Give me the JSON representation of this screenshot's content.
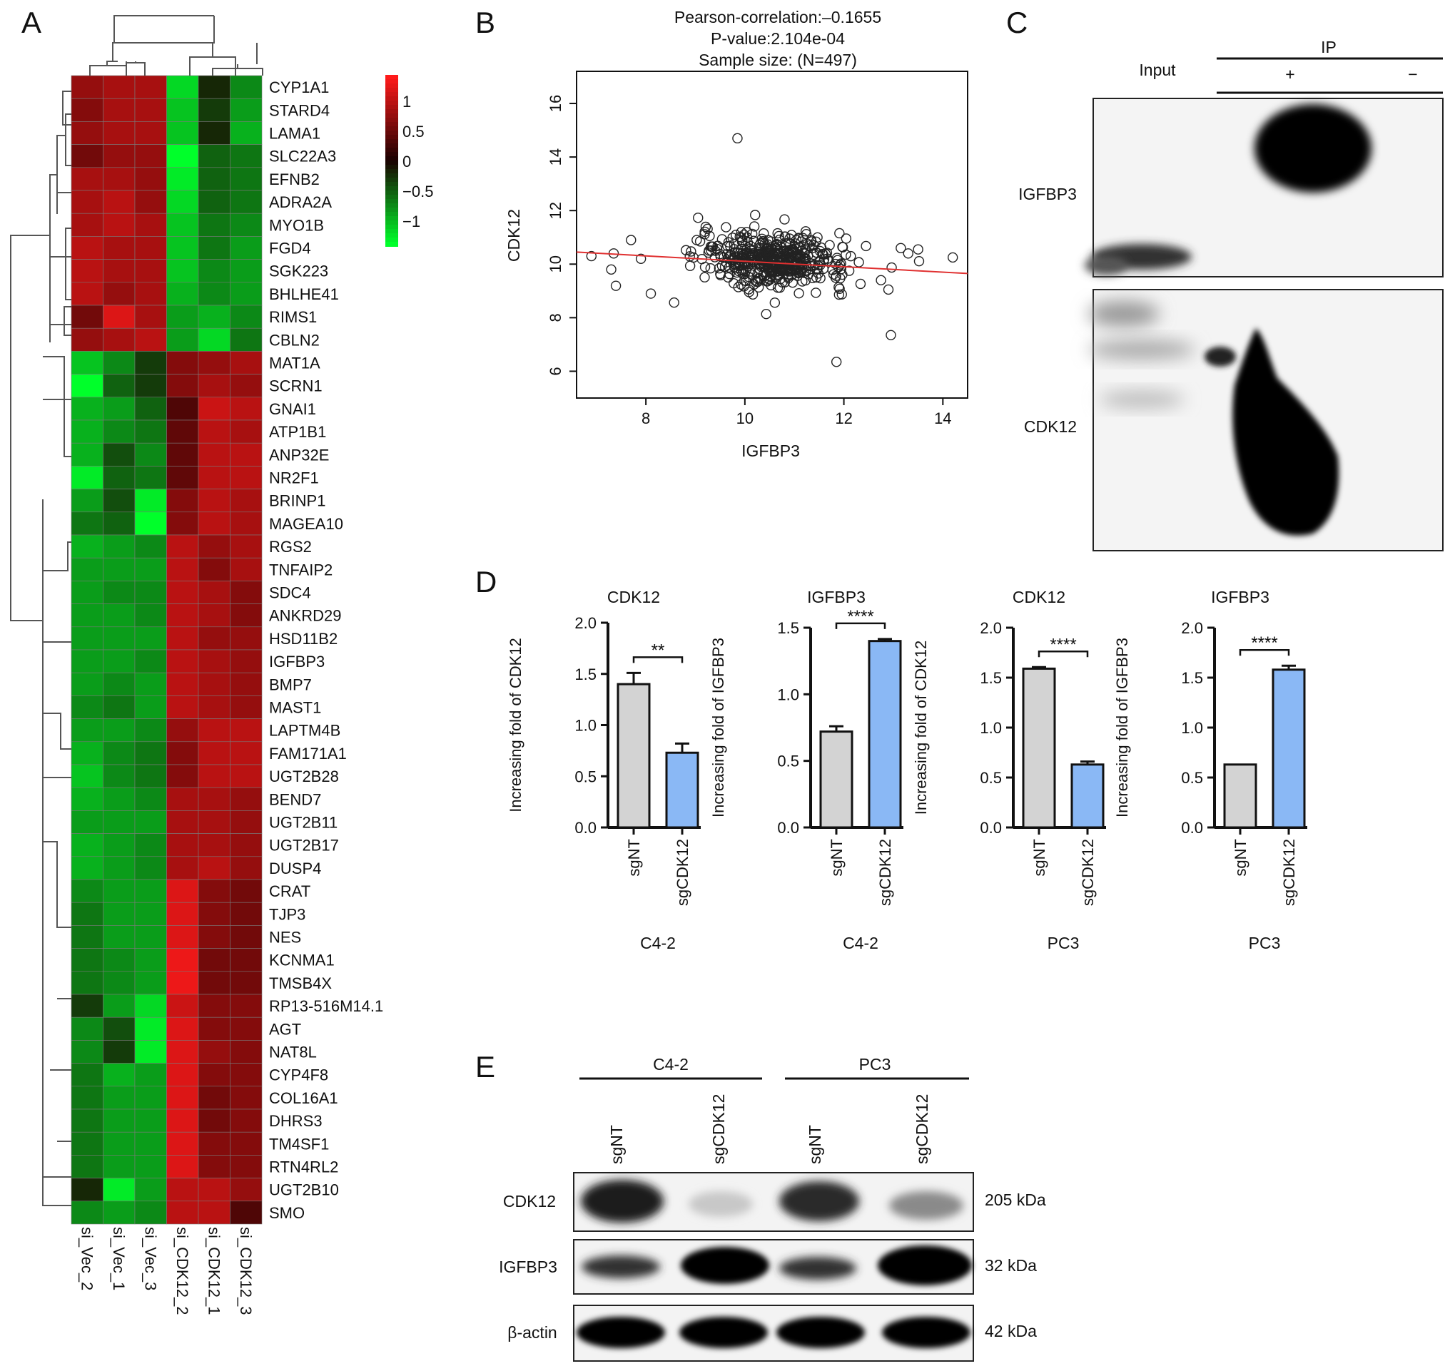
{
  "panel_labels": [
    "A",
    "B",
    "C",
    "D",
    "E"
  ],
  "colors": {
    "high": "#ff1a1a",
    "mid": "#1a0000",
    "low": "#00ff2a",
    "line": "#e03030",
    "bar_nt": "#d3d3d3",
    "bar_sg": "#8ab8f5"
  },
  "chart_data": [
    {
      "panel": "A",
      "type": "heatmap",
      "columns": [
        "si_Vec_2",
        "si_Vec_1",
        "si_Vec_3",
        "si_CDK12_2",
        "si_CDK12_1",
        "si_CDK12_3"
      ],
      "rows": [
        "CYP1A1",
        "STARD4",
        "LAMA1",
        "SLC22A3",
        "EFNB2",
        "ADRA2A",
        "MYO1B",
        "FGD4",
        "SGK223",
        "BHLHE41",
        "RIMS1",
        "CBLN2",
        "MAT1A",
        "SCRN1",
        "GNAI1",
        "ATP1B1",
        "ANP32E",
        "NR2F1",
        "BRINP1",
        "MAGEA10",
        "RGS2",
        "TNFAIP2",
        "SDC4",
        "ANKRD29",
        "HSD11B2",
        "IGFBP3",
        "BMP7",
        "MAST1",
        "LAPTM4B",
        "FAM171A1",
        "UGT2B28",
        "BEND7",
        "UGT2B11",
        "UGT2B17",
        "DUSP4",
        "CRAT",
        "TJP3",
        "NES",
        "KCNMA1",
        "TMSB4X",
        "RP13-516M14.1",
        "AGT",
        "NAT8L",
        "CYP4F8",
        "COL16A1",
        "DHRS3",
        "TM4SF1",
        "RTN4RL2",
        "UGT2B10",
        "SMO"
      ],
      "values": [
        [
          0.7,
          0.8,
          0.8,
          -1.1,
          -0.2,
          -0.7
        ],
        [
          0.6,
          0.8,
          0.8,
          -1.0,
          -0.3,
          -0.8
        ],
        [
          0.7,
          0.8,
          0.8,
          -1.0,
          -0.2,
          -0.9
        ],
        [
          0.5,
          0.7,
          0.7,
          -1.3,
          -0.5,
          -0.6
        ],
        [
          0.8,
          0.8,
          0.7,
          -1.2,
          -0.5,
          -0.6
        ],
        [
          0.8,
          0.9,
          0.7,
          -1.1,
          -0.5,
          -0.6
        ],
        [
          0.8,
          0.9,
          0.8,
          -1.0,
          -0.6,
          -0.7
        ],
        [
          0.9,
          0.8,
          0.8,
          -1.0,
          -0.6,
          -0.8
        ],
        [
          0.9,
          0.8,
          0.8,
          -1.0,
          -0.7,
          -0.8
        ],
        [
          0.9,
          0.7,
          0.8,
          -0.9,
          -0.7,
          -0.8
        ],
        [
          0.5,
          1.1,
          0.8,
          -0.8,
          -0.9,
          -0.7
        ],
        [
          0.7,
          0.8,
          0.9,
          -0.8,
          -1.1,
          -0.6
        ],
        [
          -1.0,
          -0.7,
          -0.3,
          0.6,
          0.7,
          0.8
        ],
        [
          -1.3,
          -0.5,
          -0.3,
          0.6,
          0.8,
          0.7
        ],
        [
          -0.9,
          -0.8,
          -0.5,
          0.3,
          1.0,
          0.9
        ],
        [
          -0.9,
          -0.7,
          -0.6,
          0.4,
          0.9,
          0.8
        ],
        [
          -0.9,
          -0.4,
          -0.7,
          0.4,
          0.9,
          0.9
        ],
        [
          -1.2,
          -0.5,
          -0.6,
          0.4,
          0.9,
          0.9
        ],
        [
          -0.8,
          -0.4,
          -1.2,
          0.6,
          0.9,
          0.8
        ],
        [
          -0.6,
          -0.5,
          -1.3,
          0.6,
          0.9,
          0.8
        ],
        [
          -0.9,
          -0.8,
          -0.7,
          0.9,
          0.7,
          0.8
        ],
        [
          -0.8,
          -0.8,
          -0.8,
          0.9,
          0.6,
          0.8
        ],
        [
          -0.8,
          -0.7,
          -0.7,
          0.9,
          0.8,
          0.6
        ],
        [
          -0.8,
          -0.8,
          -0.7,
          0.9,
          0.8,
          0.6
        ],
        [
          -0.8,
          -0.8,
          -0.8,
          0.9,
          0.7,
          0.7
        ],
        [
          -0.8,
          -0.8,
          -0.7,
          0.9,
          0.8,
          0.7
        ],
        [
          -0.8,
          -0.7,
          -0.8,
          0.9,
          0.8,
          0.7
        ],
        [
          -0.7,
          -0.6,
          -0.8,
          0.9,
          0.8,
          0.7
        ],
        [
          -0.8,
          -0.8,
          -0.7,
          0.7,
          0.9,
          0.9
        ],
        [
          -0.9,
          -0.7,
          -0.6,
          0.6,
          0.9,
          0.9
        ],
        [
          -1.0,
          -0.7,
          -0.6,
          0.6,
          0.9,
          0.9
        ],
        [
          -0.9,
          -0.8,
          -0.7,
          0.8,
          0.8,
          0.7
        ],
        [
          -0.8,
          -0.8,
          -0.8,
          0.8,
          0.8,
          0.7
        ],
        [
          -0.9,
          -0.8,
          -0.7,
          0.8,
          0.8,
          0.7
        ],
        [
          -0.9,
          -0.8,
          -0.7,
          0.8,
          0.9,
          0.7
        ],
        [
          -0.7,
          -0.8,
          -0.8,
          1.1,
          0.6,
          0.5
        ],
        [
          -0.6,
          -0.8,
          -0.8,
          1.1,
          0.6,
          0.5
        ],
        [
          -0.6,
          -0.8,
          -0.8,
          1.1,
          0.6,
          0.5
        ],
        [
          -0.6,
          -0.7,
          -0.8,
          1.2,
          0.5,
          0.5
        ],
        [
          -0.6,
          -0.7,
          -0.8,
          1.2,
          0.5,
          0.5
        ],
        [
          -0.3,
          -0.8,
          -1.1,
          1.0,
          0.6,
          0.6
        ],
        [
          -0.7,
          -0.4,
          -1.2,
          1.1,
          0.6,
          0.6
        ],
        [
          -0.7,
          -0.3,
          -1.2,
          1.1,
          0.7,
          0.6
        ],
        [
          -0.6,
          -0.9,
          -0.8,
          1.1,
          0.6,
          0.6
        ],
        [
          -0.6,
          -0.8,
          -0.8,
          1.1,
          0.5,
          0.6
        ],
        [
          -0.6,
          -0.8,
          -0.8,
          1.1,
          0.5,
          0.6
        ],
        [
          -0.6,
          -0.8,
          -0.8,
          1.1,
          0.6,
          0.6
        ],
        [
          -0.6,
          -0.8,
          -0.8,
          1.1,
          0.6,
          0.6
        ],
        [
          -0.2,
          -1.2,
          -0.8,
          0.9,
          0.9,
          0.7
        ],
        [
          -0.7,
          -0.8,
          -0.7,
          0.9,
          0.9,
          0.3
        ]
      ],
      "color_scale": {
        "ticks": [
          "1",
          "0.5",
          "0",
          "−0.5",
          "−1"
        ]
      }
    },
    {
      "panel": "B",
      "type": "scatter",
      "title_lines": [
        "Pearson-correlation:–0.1655",
        "P-value:2.104e-04",
        "Sample size: (N=497)"
      ],
      "xlabel": "IGFBP3",
      "ylabel": "CDK12",
      "xlim": [
        6.6,
        14.5
      ],
      "ylim": [
        5.0,
        17.2
      ],
      "xticks": [
        "8",
        "10",
        "12",
        "14"
      ],
      "yticks": [
        "6",
        "8",
        "10",
        "12",
        "14",
        "16"
      ],
      "regression": {
        "x": [
          6.6,
          14.5
        ],
        "y": [
          10.45,
          9.65
        ]
      },
      "outliers": [
        [
          9.85,
          14.7
        ],
        [
          11.85,
          6.35
        ],
        [
          12.95,
          7.35
        ],
        [
          6.9,
          10.3
        ],
        [
          7.35,
          10.4
        ],
        [
          7.3,
          9.8
        ],
        [
          7.7,
          10.9
        ],
        [
          8.1,
          8.9
        ],
        [
          7.9,
          10.2
        ],
        [
          13.3,
          10.4
        ],
        [
          13.5,
          10.55
        ],
        [
          14.2,
          10.25
        ],
        [
          13.15,
          10.6
        ],
        [
          12.9,
          9.05
        ],
        [
          12.75,
          9.4
        ]
      ],
      "cluster": {
        "n": 480,
        "x_mean": 10.6,
        "x_sd": 0.75,
        "y_mean": 10.15,
        "y_sd": 0.5,
        "seed": 7
      }
    },
    {
      "panel": "D",
      "type": "bar",
      "categories": [
        "sgNT",
        "sgCDK12"
      ],
      "subplots": [
        {
          "title": "CDK12",
          "ylabel": "Increasing fold of CDK12",
          "cell_line": "C4-2",
          "ylim": [
            0,
            2.0
          ],
          "yticks": [
            "0.0",
            "0.5",
            "1.0",
            "1.5",
            "2.0"
          ],
          "values": [
            1.4,
            0.73
          ],
          "errors": [
            0.11,
            0.09
          ],
          "significance": "**"
        },
        {
          "title": "IGFBP3",
          "ylabel": "Increasing fold of IGFBP3",
          "cell_line": "C4-2",
          "ylim": [
            0,
            1.5
          ],
          "yticks": [
            "0.0",
            "0.5",
            "1.0",
            "1.5"
          ],
          "values": [
            0.72,
            1.4
          ],
          "errors": [
            0.04,
            0.015
          ],
          "significance": "****"
        },
        {
          "title": "CDK12",
          "ylabel": "Increasing fold of CDK12",
          "cell_line": "PC3",
          "ylim": [
            0,
            2.0
          ],
          "yticks": [
            "0.0",
            "0.5",
            "1.0",
            "1.5",
            "2.0"
          ],
          "values": [
            1.59,
            0.63
          ],
          "errors": [
            0.015,
            0.03
          ],
          "significance": "****"
        },
        {
          "title": "IGFBP3",
          "ylabel": "Increasing fold of IGFBP3",
          "cell_line": "PC3",
          "ylim": [
            0,
            2.0
          ],
          "yticks": [
            "0.0",
            "0.5",
            "1.0",
            "1.5",
            "2.0"
          ],
          "values": [
            0.63,
            1.58
          ],
          "errors": [
            0.0,
            0.04
          ],
          "significance": "****"
        }
      ]
    }
  ],
  "panel_c": {
    "input_label": "Input",
    "ip_label": "IP",
    "plus_label": "+",
    "minus_label": "−",
    "row_labels": [
      "IGFBP3",
      "CDK12"
    ]
  },
  "panel_e": {
    "groups": [
      "C4-2",
      "PC3"
    ],
    "lanes": [
      "sgNT",
      "sgCDK12",
      "sgNT",
      "sgCDK12"
    ],
    "rows": [
      {
        "label": "CDK12",
        "size": "205 kDa"
      },
      {
        "label": "IGFBP3",
        "size": "32 kDa"
      },
      {
        "label": "β-actin",
        "size": "42 kDa"
      }
    ]
  }
}
